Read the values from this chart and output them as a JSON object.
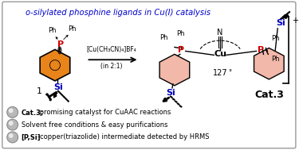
{
  "title": "o-silylated phosphine ligands in Cu(I) catalysis",
  "title_color": "#0000cc",
  "bg_color": "#ffffff",
  "border_color": "#999999",
  "bullet_points": [
    "Cat.3; promising catalyst for CuAAC reactions",
    "Solvent free conditions & easy purifications",
    "[P,Si]-copper(triazolide) intermediate detected by HRMS"
  ],
  "bullet_bold_prefix": [
    "Cat.3;",
    "",
    "[P,Si]"
  ],
  "reagent_label": "[Cu(CH₃CN)₄]BF₄",
  "reagent_sub": "(in 2:1)",
  "compound1_label": "1",
  "cat_label": "Cat.3",
  "angle_label": "127",
  "orange_color": "#e8841a",
  "pink_color": "#f2b8aa",
  "red_color": "#cc0000",
  "blue_color": "#0000bb",
  "black": "#000000"
}
